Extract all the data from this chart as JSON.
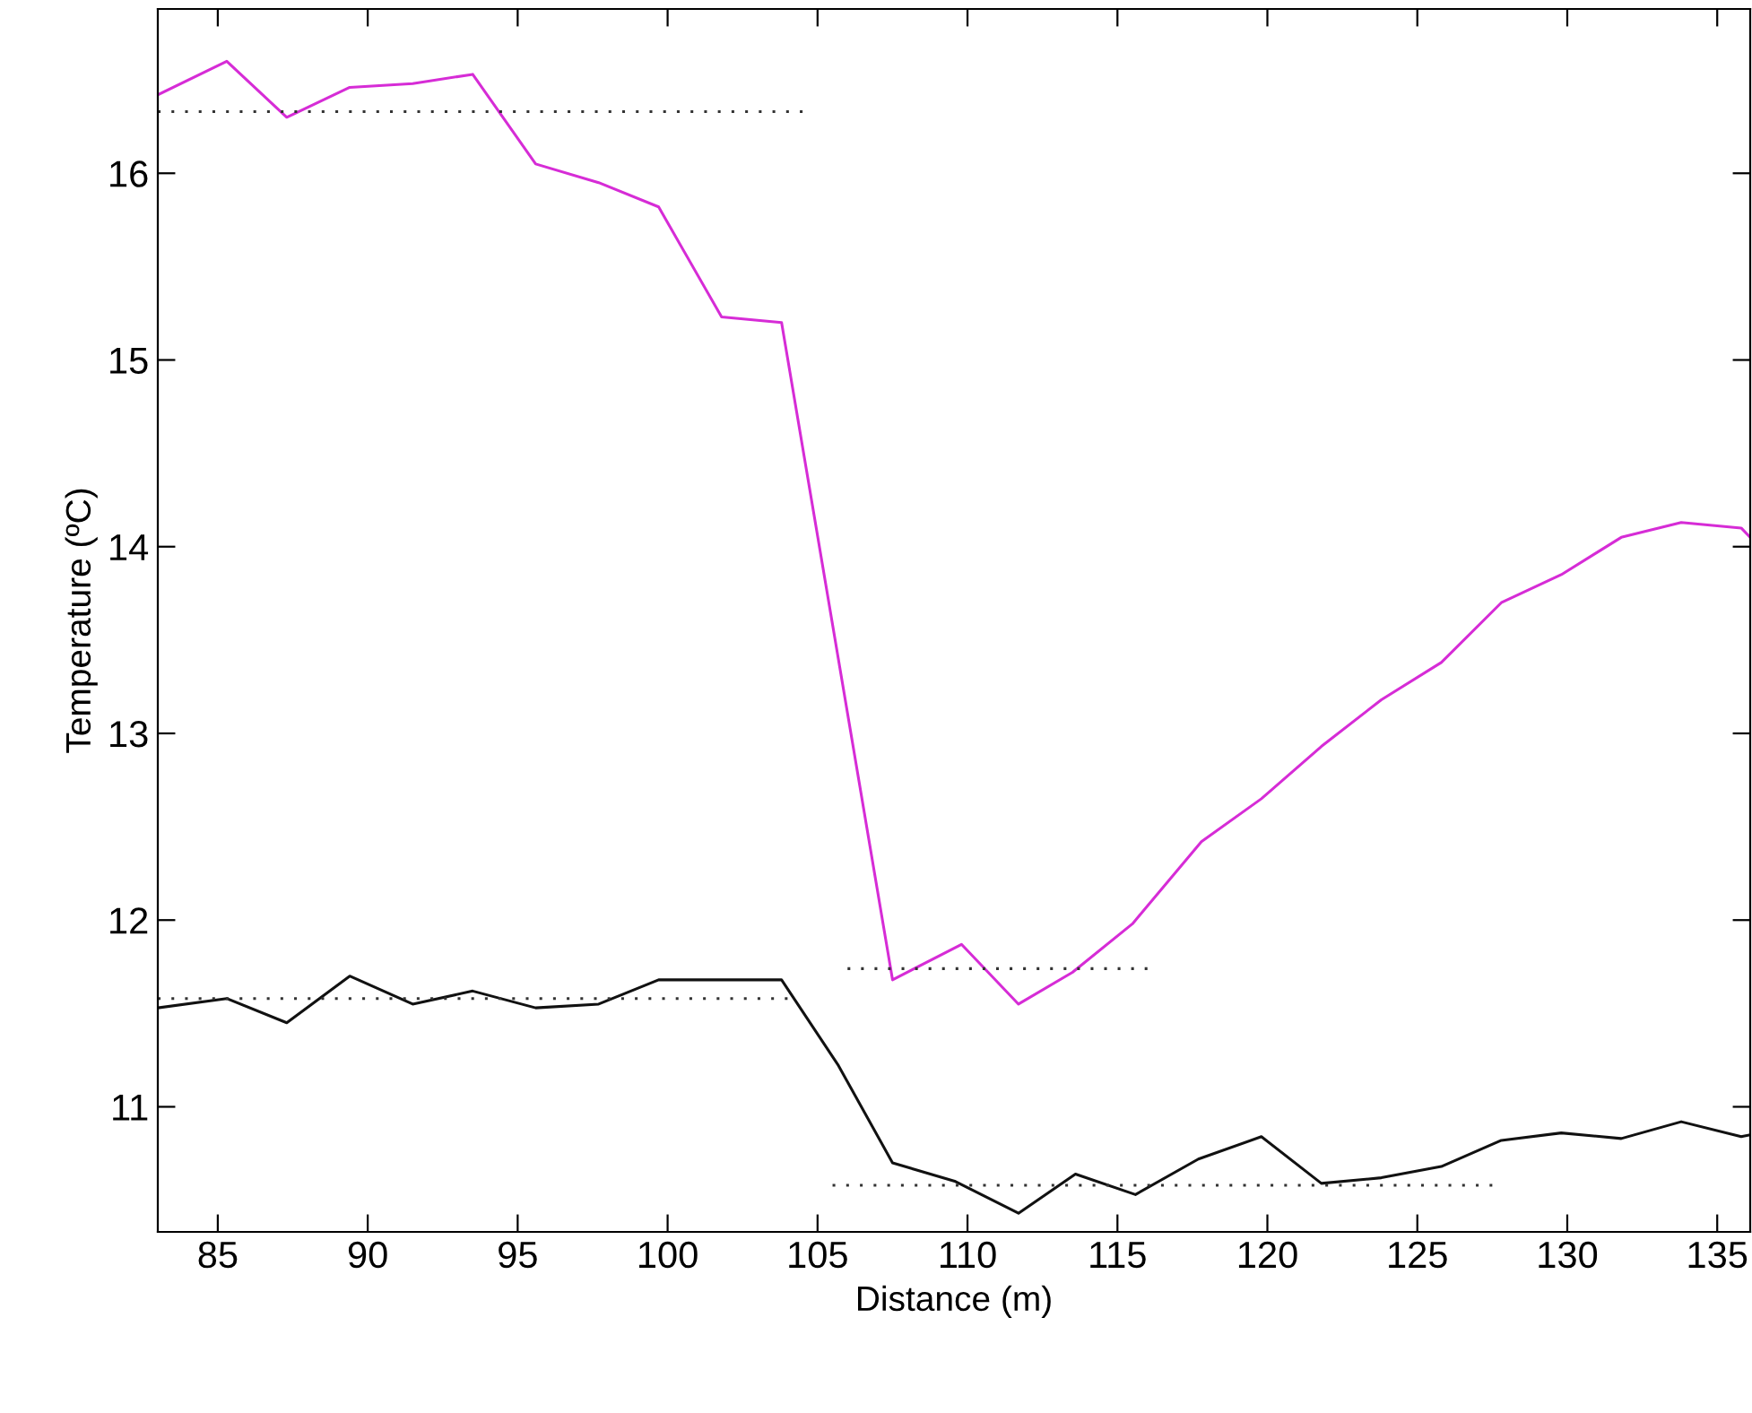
{
  "chart_data": {
    "type": "line",
    "xlabel": "Distance (m)",
    "ylabel": "Temperature (ºC)",
    "xlim": [
      83,
      136.1
    ],
    "ylim": [
      10.33,
      16.88
    ],
    "xticks": [
      85,
      90,
      95,
      100,
      105,
      110,
      115,
      120,
      125,
      130,
      135
    ],
    "yticks": [
      11,
      12,
      13,
      14,
      15,
      16
    ],
    "line_style": "solid",
    "marker": "none",
    "series": [
      {
        "color": "#d62cd6",
        "x": [
          83,
          85.3,
          87.3,
          89.4,
          91.5,
          93.5,
          95.6,
          97.7,
          99.7,
          101.8,
          103.8,
          107.5,
          109.8,
          111.7,
          113.5,
          115.5,
          117.8,
          119.8,
          121.8,
          123.8,
          125.8,
          127.8,
          129.8,
          131.8,
          133.8,
          135.8,
          136.1
        ],
        "values": [
          16.42,
          16.6,
          16.3,
          16.46,
          16.48,
          16.53,
          16.05,
          15.95,
          15.82,
          15.23,
          15.2,
          11.68,
          11.87,
          11.55,
          11.72,
          11.98,
          12.42,
          12.65,
          12.93,
          13.18,
          13.38,
          13.7,
          13.85,
          14.05,
          14.13,
          14.1,
          14.05
        ]
      },
      {
        "color": "#111111",
        "x": [
          83,
          85.3,
          87.3,
          89.4,
          91.5,
          93.5,
          95.6,
          97.7,
          99.7,
          103.8,
          105.7,
          107.5,
          109.6,
          111.7,
          113.6,
          115.6,
          117.7,
          119.8,
          121.8,
          123.8,
          125.8,
          127.8,
          129.8,
          131.8,
          133.8,
          135.8,
          136.1
        ],
        "values": [
          11.53,
          11.58,
          11.45,
          11.7,
          11.55,
          11.62,
          11.53,
          11.55,
          11.68,
          11.68,
          11.22,
          10.7,
          10.6,
          10.43,
          10.64,
          10.53,
          10.72,
          10.84,
          10.59,
          10.62,
          10.68,
          10.82,
          10.86,
          10.83,
          10.92,
          10.84,
          10.85
        ]
      },
      {
        "color": "#333333",
        "line_style": "dotted",
        "x": [
          83,
          104.5
        ],
        "values": [
          16.33,
          16.33
        ]
      },
      {
        "color": "#333333",
        "line_style": "dotted",
        "x": [
          83,
          104
        ],
        "values": [
          11.58,
          11.58
        ]
      },
      {
        "color": "#333333",
        "line_style": "dotted",
        "x": [
          106,
          116
        ],
        "values": [
          11.74,
          11.74
        ]
      },
      {
        "color": "#333333",
        "line_style": "dotted",
        "x": [
          105.5,
          127.5
        ],
        "values": [
          10.58,
          10.58
        ]
      }
    ]
  }
}
